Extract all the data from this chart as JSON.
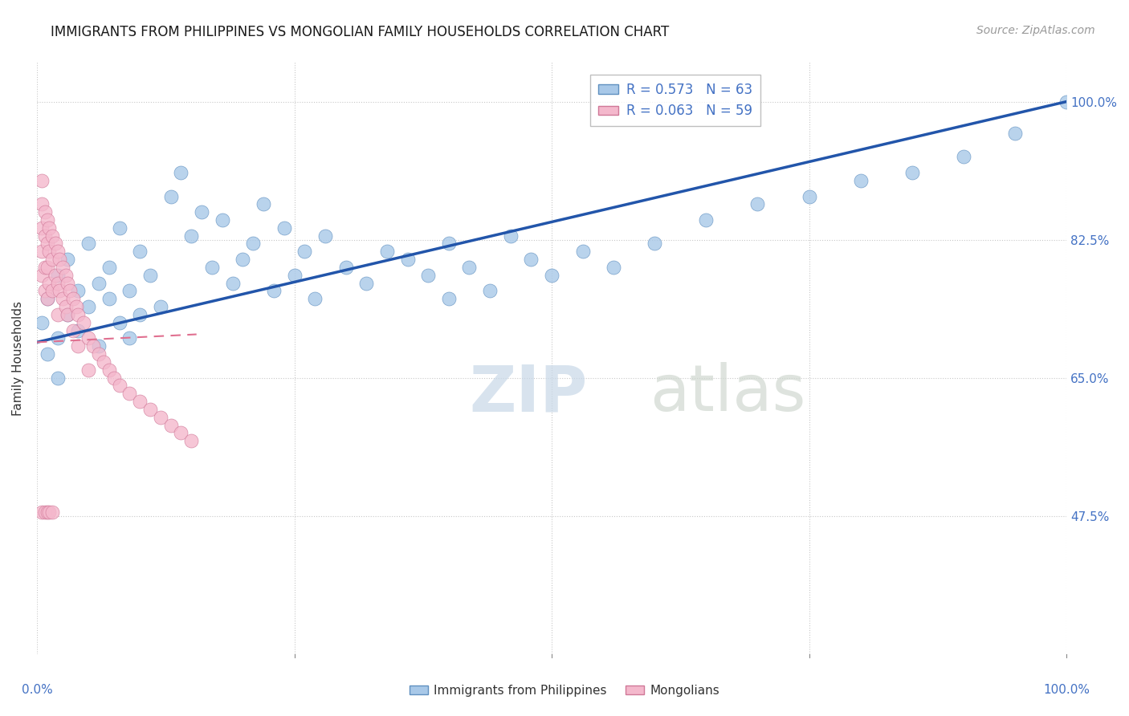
{
  "title": "IMMIGRANTS FROM PHILIPPINES VS MONGOLIAN FAMILY HOUSEHOLDS CORRELATION CHART",
  "source": "Source: ZipAtlas.com",
  "ylabel": "Family Households",
  "blue_label": "Immigrants from Philippines",
  "pink_label": "Mongolians",
  "legend_r1": "R = 0.573   N = 63",
  "legend_r2": "R = 0.063   N = 59",
  "blue_scatter_x": [
    0.005,
    0.01,
    0.01,
    0.02,
    0.02,
    0.02,
    0.03,
    0.03,
    0.04,
    0.04,
    0.05,
    0.05,
    0.06,
    0.06,
    0.07,
    0.07,
    0.08,
    0.08,
    0.09,
    0.09,
    0.1,
    0.1,
    0.11,
    0.12,
    0.13,
    0.14,
    0.15,
    0.16,
    0.17,
    0.18,
    0.19,
    0.2,
    0.21,
    0.22,
    0.23,
    0.24,
    0.25,
    0.26,
    0.27,
    0.28,
    0.3,
    0.32,
    0.34,
    0.36,
    0.38,
    0.4,
    0.4,
    0.42,
    0.44,
    0.46,
    0.48,
    0.5,
    0.53,
    0.56,
    0.6,
    0.65,
    0.7,
    0.75,
    0.8,
    0.85,
    0.9,
    0.95,
    1.0
  ],
  "blue_scatter_y": [
    0.72,
    0.68,
    0.75,
    0.7,
    0.78,
    0.65,
    0.73,
    0.8,
    0.71,
    0.76,
    0.74,
    0.82,
    0.69,
    0.77,
    0.75,
    0.79,
    0.72,
    0.84,
    0.7,
    0.76,
    0.73,
    0.81,
    0.78,
    0.74,
    0.88,
    0.91,
    0.83,
    0.86,
    0.79,
    0.85,
    0.77,
    0.8,
    0.82,
    0.87,
    0.76,
    0.84,
    0.78,
    0.81,
    0.75,
    0.83,
    0.79,
    0.77,
    0.81,
    0.8,
    0.78,
    0.82,
    0.75,
    0.79,
    0.76,
    0.83,
    0.8,
    0.78,
    0.81,
    0.79,
    0.82,
    0.85,
    0.87,
    0.88,
    0.9,
    0.91,
    0.93,
    0.96,
    1.0
  ],
  "pink_scatter_x": [
    0.005,
    0.005,
    0.005,
    0.005,
    0.005,
    0.008,
    0.008,
    0.008,
    0.008,
    0.01,
    0.01,
    0.01,
    0.01,
    0.012,
    0.012,
    0.012,
    0.015,
    0.015,
    0.015,
    0.018,
    0.018,
    0.02,
    0.02,
    0.02,
    0.022,
    0.022,
    0.025,
    0.025,
    0.028,
    0.028,
    0.03,
    0.03,
    0.032,
    0.035,
    0.035,
    0.038,
    0.04,
    0.04,
    0.045,
    0.05,
    0.05,
    0.055,
    0.06,
    0.065,
    0.07,
    0.075,
    0.08,
    0.09,
    0.1,
    0.11,
    0.12,
    0.13,
    0.14,
    0.15,
    0.005,
    0.008,
    0.01,
    0.012,
    0.015
  ],
  "pink_scatter_y": [
    0.9,
    0.87,
    0.84,
    0.81,
    0.78,
    0.86,
    0.83,
    0.79,
    0.76,
    0.85,
    0.82,
    0.79,
    0.75,
    0.84,
    0.81,
    0.77,
    0.83,
    0.8,
    0.76,
    0.82,
    0.78,
    0.81,
    0.77,
    0.73,
    0.8,
    0.76,
    0.79,
    0.75,
    0.78,
    0.74,
    0.77,
    0.73,
    0.76,
    0.75,
    0.71,
    0.74,
    0.73,
    0.69,
    0.72,
    0.7,
    0.66,
    0.69,
    0.68,
    0.67,
    0.66,
    0.65,
    0.64,
    0.63,
    0.62,
    0.61,
    0.6,
    0.59,
    0.58,
    0.57,
    0.48,
    0.48,
    0.48,
    0.48,
    0.48
  ],
  "blue_line_x": [
    0.0,
    1.0
  ],
  "blue_line_y": [
    0.695,
    1.0
  ],
  "pink_line_x": [
    0.0,
    0.155
  ],
  "pink_line_y": [
    0.695,
    0.705
  ],
  "xlim": [
    0.0,
    1.0
  ],
  "ylim": [
    0.3,
    1.05
  ],
  "y_ticks": [
    1.0,
    0.825,
    0.65,
    0.475
  ],
  "y_tick_labels": [
    "100.0%",
    "82.5%",
    "65.0%",
    "47.5%"
  ],
  "background_color": "#ffffff",
  "blue_color": "#a8c8e8",
  "pink_color": "#f4b8cc",
  "blue_edge_color": "#6090c0",
  "pink_edge_color": "#d07898",
  "blue_line_color": "#2255aa",
  "pink_line_color": "#e07090",
  "accent_color": "#4472c4",
  "title_fontsize": 12,
  "source_fontsize": 10,
  "tick_fontsize": 11,
  "ylabel_fontsize": 11,
  "legend_fontsize": 12,
  "scatter_size": 150
}
